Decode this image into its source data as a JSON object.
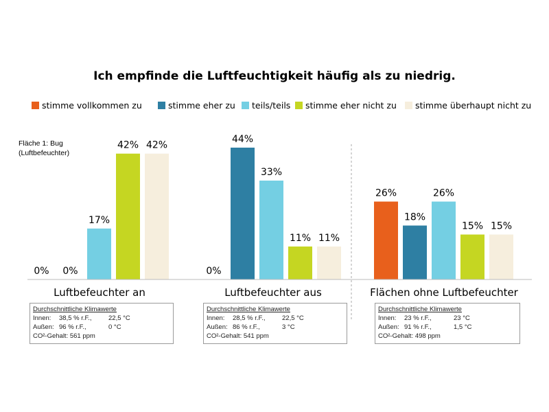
{
  "chart_data": {
    "type": "bar",
    "title": "Ich empfinde die Luftfeuchtigkeit häufig als zu niedrig.",
    "ylim": [
      0,
      44
    ],
    "legend_position": "top",
    "categories": [
      "Luftbefeuchter an",
      "Luftbefeuchter aus",
      "Flächen ohne Luftbefeuchter"
    ],
    "series": [
      {
        "name": "stimme vollkommen zu",
        "color": "#e8601c",
        "values": [
          0,
          0,
          26
        ],
        "labels": [
          "0%",
          "0%",
          "26%"
        ]
      },
      {
        "name": "stimme eher zu",
        "color": "#2e7fa3",
        "values": [
          0,
          44,
          18
        ],
        "labels": [
          "0%",
          "44%",
          "18%"
        ]
      },
      {
        "name": "teils/teils",
        "color": "#74cfe3",
        "values": [
          17,
          33,
          26
        ],
        "labels": [
          "17%",
          "33%",
          "26%"
        ]
      },
      {
        "name": "stimme eher nicht zu",
        "color": "#c5d622",
        "values": [
          42,
          11,
          15
        ],
        "labels": [
          "42%",
          "11%",
          "15%"
        ]
      },
      {
        "name": "stimme überhaupt nicht zu",
        "color": "#f6eedd",
        "values": [
          42,
          11,
          15
        ],
        "labels": [
          "42%",
          "11%",
          "15%"
        ]
      }
    ],
    "annotation": [
      "Fläche 1: Bug",
      "(Luftbefeuchter)"
    ]
  },
  "boxes": [
    {
      "header": "Durchschnittliche Klimawerte",
      "inside": [
        "Innen:",
        "38,5 % r.F.,",
        "22,5 °C"
      ],
      "outside": [
        "Außen:",
        "96 % r.F.,",
        "0 °C"
      ],
      "co2": "CO²-Gehalt: 561 ppm"
    },
    {
      "header": "Durchschnittliche Klimawerte",
      "inside": [
        "Innen:",
        "28,5 % r.F.,",
        "22,5 °C"
      ],
      "outside": [
        "Außen:",
        "86 % r.F.,",
        "3 °C"
      ],
      "co2": "CO²-Gehalt: 541 ppm"
    },
    {
      "header": "Durchschnittliche Klimawerte",
      "inside": [
        "Innen:",
        "23 % r.F.,",
        "23 °C"
      ],
      "outside": [
        "Außen:",
        "91 % r.F.,",
        "1,5 °C"
      ],
      "co2": "CO²-Gehalt: 498 ppm"
    }
  ]
}
